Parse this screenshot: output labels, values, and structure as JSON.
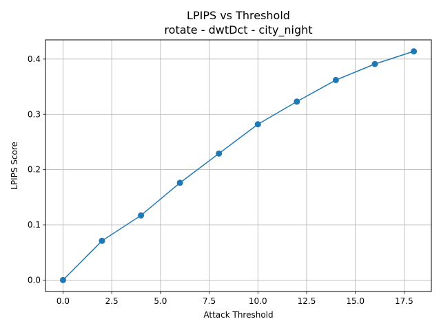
{
  "chart_data": {
    "type": "line",
    "title": "LPIPS vs Threshold",
    "subtitle": "rotate - dwtDct - city_night",
    "xlabel": "Attack Threshold",
    "ylabel": "LPIPS Score",
    "x": [
      0,
      2,
      4,
      6,
      8,
      10,
      12,
      14,
      16,
      18
    ],
    "series": [
      {
        "values": [
          0.0,
          0.071,
          0.117,
          0.176,
          0.229,
          0.282,
          0.323,
          0.362,
          0.391,
          0.414
        ]
      }
    ],
    "xlim": [
      -0.9,
      18.9
    ],
    "ylim": [
      -0.0207,
      0.4347
    ],
    "xticks": [
      "0.0",
      "2.5",
      "5.0",
      "7.5",
      "10.0",
      "12.5",
      "15.0",
      "17.5"
    ],
    "yticks": [
      "0.0",
      "0.1",
      "0.2",
      "0.3",
      "0.4"
    ],
    "grid": true,
    "line_color": "#1f77b4"
  }
}
